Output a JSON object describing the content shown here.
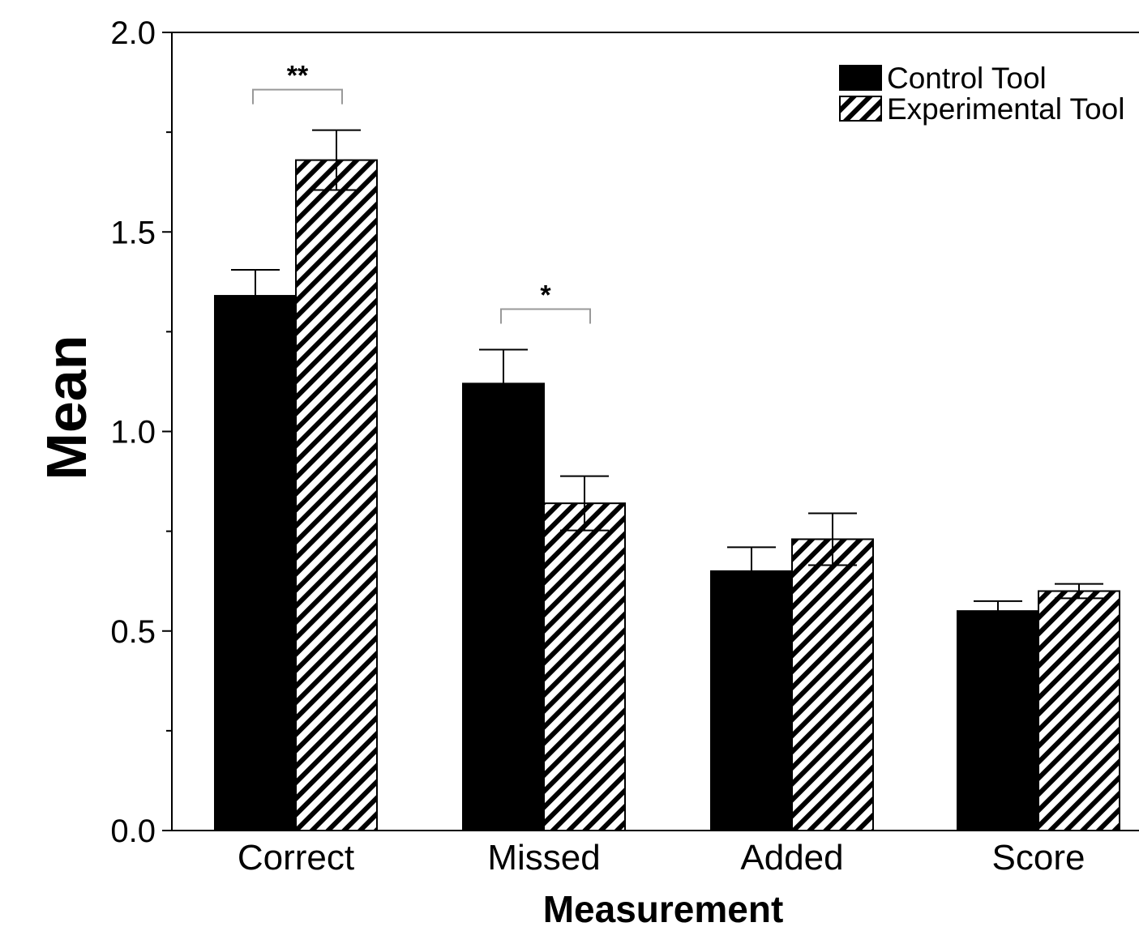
{
  "chart_data": {
    "type": "bar",
    "title": "",
    "xlabel": "Measurement",
    "ylabel": "Mean",
    "categories": [
      "Correct",
      "Missed",
      "Added",
      "Score"
    ],
    "series": [
      {
        "name": "Control Tool",
        "fill": "solid",
        "color": "#000000",
        "values": [
          1.34,
          1.12,
          0.65,
          0.55
        ],
        "errors": [
          0.065,
          0.085,
          0.06,
          0.025
        ]
      },
      {
        "name": "Experimental Tool",
        "fill": "hatched",
        "color": "#000000",
        "values": [
          1.68,
          0.82,
          0.73,
          0.6
        ],
        "errors": [
          0.075,
          0.068,
          0.065,
          0.018
        ]
      }
    ],
    "ylim": [
      0,
      2.0
    ],
    "yticks_labeled": [
      "0.0",
      "0.5",
      "1.0",
      "1.5",
      "2.0"
    ],
    "yticks_minor": [
      0.25,
      0.75,
      1.25,
      1.75
    ],
    "grid": false,
    "legend_position": "top-right",
    "significance": [
      {
        "category": "Correct",
        "label": "**"
      },
      {
        "category": "Missed",
        "label": "*"
      }
    ]
  }
}
